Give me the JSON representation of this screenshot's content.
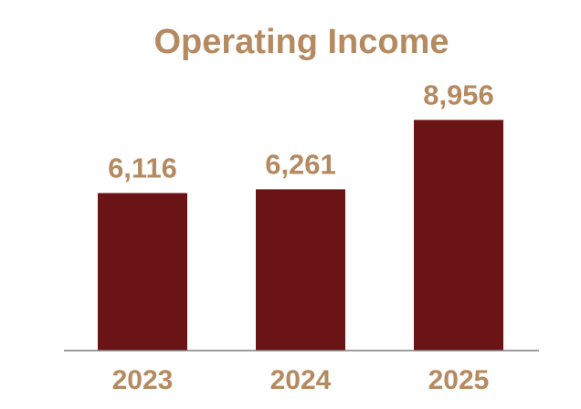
{
  "chart_data": {
    "type": "bar",
    "title": "Operating Income",
    "categories": [
      "2023",
      "2024",
      "2025"
    ],
    "values": [
      6116,
      6261,
      8956
    ],
    "value_labels": [
      "6,116",
      "6,261",
      "8,956"
    ],
    "xlabel": "",
    "ylabel": "",
    "ylim": [
      0,
      9500
    ],
    "grid": false,
    "legend": "none",
    "colors": {
      "bar": "#6B1416",
      "text": "#B58A61",
      "axis": "#7F7F7F",
      "background": "#FFFFFF"
    }
  }
}
